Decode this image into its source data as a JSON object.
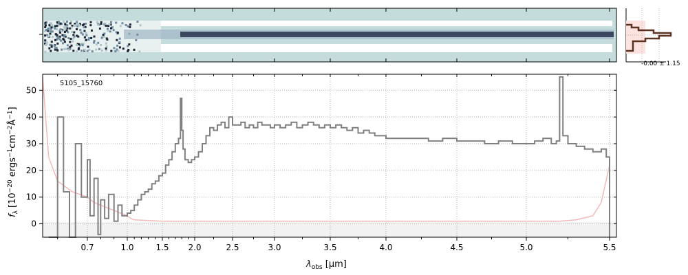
{
  "figure": {
    "object_label": "5105_15760",
    "sigma_label": "-0.00 ± 1.15",
    "ylabel_main": "f",
    "ylabel_sub": "λ",
    "ylabel_rest": " [10",
    "ylabel_exp1": "−20",
    "ylabel_mid": " ergs",
    "ylabel_exp2": "−1",
    "ylabel_cm": "cm",
    "ylabel_exp3": "−2",
    "ylabel_ang": "Å",
    "ylabel_exp4": "−1",
    "ylabel_end": "]",
    "xlabel_main": "λ",
    "xlabel_sub": "obs",
    "xlabel_rest": " [μm]"
  },
  "colors": {
    "spectrum": "#808080",
    "error": "#f4b8b8",
    "error_fill": "#fde3df",
    "twod_bg": "#c5dcdc",
    "twod_trace": "#3c4660",
    "hist": "#5a3020",
    "grid": "#b0b0b0"
  },
  "chart_data": {
    "type": "line",
    "x_scale": "nonlinear (wavelength)",
    "xlabel": "λobs [μm]",
    "ylabel": "fλ [10^-20 ergs^-1 cm^-2 Å^-1]",
    "x_ticks": [
      "0.7",
      "1.0",
      "1.5",
      "2.0",
      "2.5",
      "3.0",
      "3.5",
      "4.0",
      "4.5",
      "5.0",
      "5.5"
    ],
    "x_tick_values": [
      0.7,
      1.0,
      1.5,
      2.0,
      2.5,
      3.0,
      3.5,
      4.0,
      4.5,
      5.0,
      5.5
    ],
    "y_ticks": [
      "0",
      "10",
      "20",
      "30",
      "40",
      "50"
    ],
    "y_tick_values": [
      0,
      10,
      20,
      30,
      40,
      50
    ],
    "xlim": [
      0.55,
      5.55
    ],
    "ylim": [
      -5,
      56
    ],
    "grid": true,
    "series": [
      {
        "x": [
          0.57,
          0.6,
          0.62,
          0.64,
          0.66,
          0.68,
          0.7,
          0.72,
          0.75,
          0.78,
          0.8,
          0.83,
          0.86,
          0.9,
          0.93,
          0.96,
          1.0,
          1.05,
          1.1,
          1.15,
          1.2,
          1.25,
          1.3,
          1.35,
          1.4,
          1.45,
          1.5,
          1.55,
          1.6,
          1.65,
          1.7,
          1.75,
          1.78,
          1.8,
          1.82,
          1.85,
          1.9,
          1.95,
          2.0,
          2.05,
          2.1,
          2.15,
          2.2,
          2.25,
          2.3,
          2.35,
          2.4,
          2.45,
          2.5,
          2.55,
          2.6,
          2.65,
          2.7,
          2.75,
          2.8,
          2.85,
          2.9,
          2.95,
          3.0,
          3.05,
          3.1,
          3.15,
          3.2,
          3.25,
          3.3,
          3.35,
          3.4,
          3.45,
          3.5,
          3.55,
          3.6,
          3.65,
          3.7,
          3.75,
          3.8,
          3.85,
          3.9,
          3.95,
          4.0,
          4.1,
          4.2,
          4.3,
          4.4,
          4.5,
          4.6,
          4.7,
          4.8,
          4.9,
          5.0,
          5.05,
          5.1,
          5.15,
          5.18,
          5.2,
          5.22,
          5.25,
          5.3,
          5.35,
          5.4,
          5.45,
          5.48,
          5.5
        ],
        "y": [
          -5,
          40,
          12,
          -5,
          30,
          10,
          24,
          3,
          17,
          -4,
          9,
          2,
          11,
          1,
          7,
          3,
          4,
          5,
          7,
          9,
          11,
          12,
          13,
          15,
          16,
          18,
          19,
          22,
          24,
          27,
          30,
          32,
          47,
          35,
          28,
          24,
          23,
          24,
          25,
          27,
          30,
          33,
          36,
          35,
          37,
          38,
          36,
          40,
          37,
          37,
          38,
          36,
          37,
          36,
          38,
          37,
          37,
          36,
          37,
          36,
          37,
          38,
          36,
          37,
          38,
          37,
          36,
          37,
          36,
          37,
          36,
          35,
          36,
          34,
          35,
          34,
          33,
          33,
          32,
          32,
          32,
          31,
          32,
          31,
          31,
          30,
          31,
          30,
          30,
          31,
          32,
          30,
          31,
          55,
          33,
          30,
          29,
          28,
          27,
          28,
          25,
          -5
        ]
      },
      {
        "x": [
          0.55,
          0.57,
          0.6,
          0.65,
          0.7,
          0.75,
          0.8,
          0.85,
          0.9,
          0.95,
          1.0,
          1.05,
          1.1,
          1.5,
          2.0,
          2.5,
          3.0,
          3.5,
          4.0,
          4.5,
          5.0,
          5.2,
          5.3,
          5.4,
          5.45,
          5.5
        ],
        "y": [
          55,
          25,
          16,
          12,
          10,
          8,
          7,
          6,
          5,
          4,
          3,
          2,
          1.5,
          1,
          1,
          1,
          1,
          1,
          1,
          1,
          1,
          1,
          1.5,
          3,
          8,
          22
        ]
      }
    ]
  }
}
